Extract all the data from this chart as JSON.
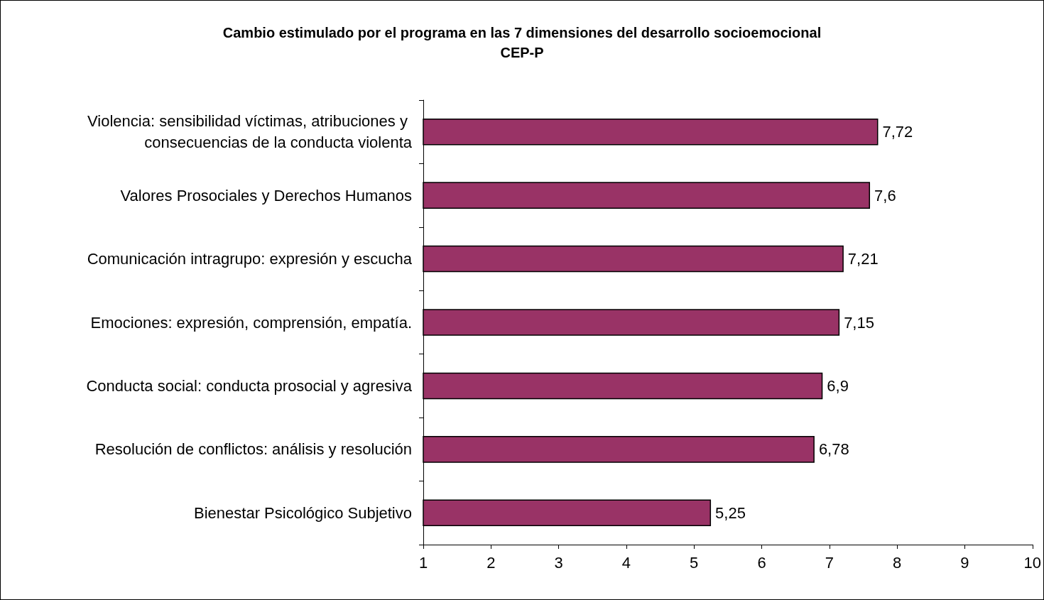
{
  "chart_data": {
    "type": "bar",
    "orientation": "horizontal",
    "title": "Cambio estimulado por el programa en las 7 dimensiones del desarrollo socioemocional",
    "subtitle": "CEP-P",
    "categories": [
      "Violencia: sensibilidad víctimas, atribuciones y consecuencias de la conducta violenta",
      "Valores Prosociales y Derechos Humanos",
      "Comunicación intragrupo: expresión y escucha",
      "Emociones: expresión, comprensión, empatía.",
      "Conducta social: conducta prosocial y agresiva",
      "Resolución de conflictos: análisis y resolución",
      "Bienestar Psicológico Subjetivo"
    ],
    "values": [
      7.72,
      7.6,
      7.21,
      7.15,
      6.9,
      6.78,
      5.25
    ],
    "value_labels": [
      "7,72",
      "7,6",
      "7,21",
      "7,15",
      "6,9",
      "6,78",
      "5,25"
    ],
    "color": "#993366",
    "xlim": [
      1,
      10
    ],
    "xticks": [
      1,
      2,
      3,
      4,
      5,
      6,
      7,
      8,
      9,
      10
    ],
    "grid": false
  }
}
